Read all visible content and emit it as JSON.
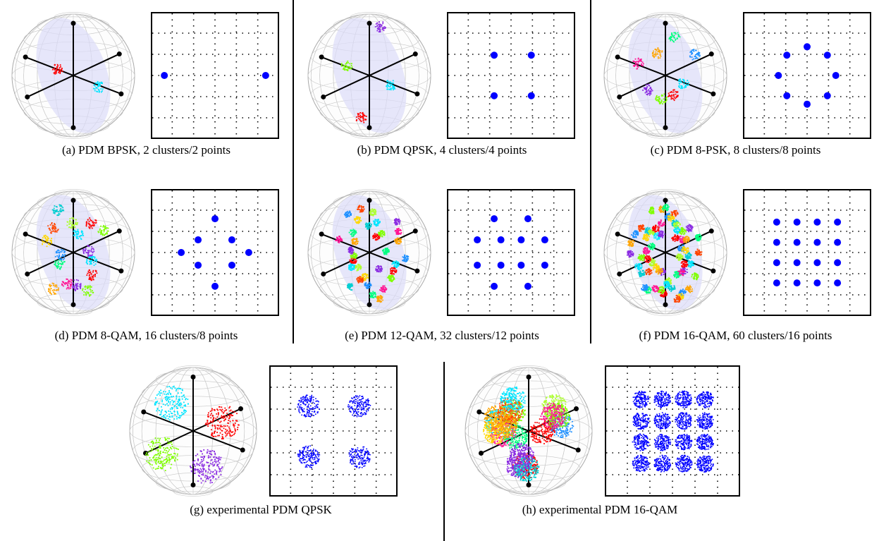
{
  "figure": {
    "panels": [
      {
        "id": "a",
        "caption": "(a) PDM BPSK, 2 clusters/2 points",
        "constellation": [
          [
            -3,
            0
          ],
          [
            3,
            0
          ]
        ],
        "experimental": false
      },
      {
        "id": "b",
        "caption": "(b) PDM QPSK, 4 clusters/4 points",
        "constellation": [
          [
            -1,
            1.2
          ],
          [
            1.2,
            1.2
          ],
          [
            -1,
            -1.2
          ],
          [
            1.2,
            -1.2
          ]
        ],
        "experimental": false
      },
      {
        "id": "c",
        "caption": "(c) PDM 8-PSK, 8 clusters/8 points",
        "constellation": [
          [
            0,
            1.7
          ],
          [
            1.2,
            1.2
          ],
          [
            1.7,
            0
          ],
          [
            1.2,
            -1.2
          ],
          [
            0,
            -1.7
          ],
          [
            -1.2,
            -1.2
          ],
          [
            -1.7,
            0
          ],
          [
            -1.2,
            1.2
          ]
        ],
        "experimental": false
      },
      {
        "id": "d",
        "caption": "(d) PDM 8-QAM, 16 clusters/8 points",
        "constellation": [
          [
            0,
            2
          ],
          [
            -1,
            0.75
          ],
          [
            1,
            0.75
          ],
          [
            -2,
            0
          ],
          [
            2,
            0
          ],
          [
            -1,
            -0.75
          ],
          [
            1,
            -0.75
          ],
          [
            0,
            -2
          ]
        ],
        "experimental": false
      },
      {
        "id": "e",
        "caption": "(e) PDM 12-QAM, 32 clusters/12 points",
        "constellation": [
          [
            -1,
            2
          ],
          [
            1,
            2
          ],
          [
            -2,
            0.75
          ],
          [
            -0.6,
            0.75
          ],
          [
            0.6,
            0.75
          ],
          [
            2,
            0.75
          ],
          [
            -2,
            -0.75
          ],
          [
            -0.6,
            -0.75
          ],
          [
            0.6,
            -0.75
          ],
          [
            2,
            -0.75
          ],
          [
            -1,
            -2
          ],
          [
            1,
            -2
          ]
        ],
        "experimental": false
      },
      {
        "id": "f",
        "caption": "(f) PDM 16-QAM, 60 clusters/16 points",
        "constellation": [
          [
            -1.8,
            1.8
          ],
          [
            -0.6,
            1.8
          ],
          [
            0.6,
            1.8
          ],
          [
            1.8,
            1.8
          ],
          [
            -1.8,
            0.6
          ],
          [
            -0.6,
            0.6
          ],
          [
            0.6,
            0.6
          ],
          [
            1.8,
            0.6
          ],
          [
            -1.8,
            -0.6
          ],
          [
            -0.6,
            -0.6
          ],
          [
            0.6,
            -0.6
          ],
          [
            1.8,
            -0.6
          ],
          [
            -1.8,
            -1.8
          ],
          [
            -0.6,
            -1.8
          ],
          [
            0.6,
            -1.8
          ],
          [
            1.8,
            -1.8
          ]
        ],
        "experimental": false
      },
      {
        "id": "g",
        "caption": "(g) experimental PDM QPSK",
        "constellation": [
          [
            -1.5,
            1.5
          ],
          [
            1.5,
            1.5
          ],
          [
            -1.5,
            -1.5
          ],
          [
            1.5,
            -1.5
          ]
        ],
        "experimental": true
      },
      {
        "id": "h",
        "caption": "(h) experimental PDM 16-QAM",
        "constellation": [
          [
            -1.8,
            1.8
          ],
          [
            -0.6,
            1.8
          ],
          [
            0.6,
            1.8
          ],
          [
            1.8,
            1.8
          ],
          [
            -1.8,
            0.6
          ],
          [
            -0.6,
            0.6
          ],
          [
            0.6,
            0.6
          ],
          [
            1.8,
            0.6
          ],
          [
            -1.8,
            -0.6
          ],
          [
            -0.6,
            -0.6
          ],
          [
            0.6,
            -0.6
          ],
          [
            1.8,
            -0.6
          ],
          [
            -1.8,
            -1.8
          ],
          [
            -0.6,
            -1.8
          ],
          [
            0.6,
            -1.8
          ],
          [
            1.8,
            -1.8
          ]
        ],
        "experimental": true
      }
    ],
    "colors": {
      "constellation_point": "#0000ff",
      "sphere_grid": "#c8c8c8",
      "plane_fill": "#dcdcf8",
      "axis": "#000000"
    },
    "cluster_palette": [
      "#00e5ff",
      "#ff0000",
      "#7fff00",
      "#8a2be2",
      "#ff1493",
      "#ffa500",
      "#00ff7f",
      "#1e90ff",
      "#ffd700",
      "#ff4500",
      "#00ced1",
      "#adff2f"
    ]
  }
}
